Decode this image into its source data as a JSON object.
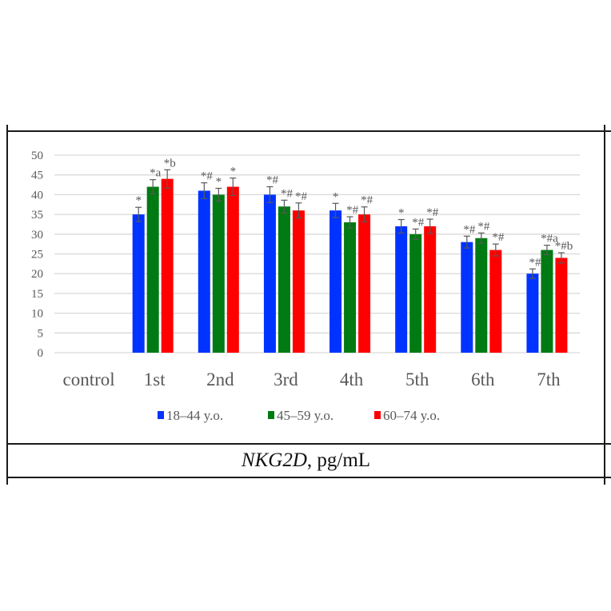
{
  "caption": {
    "gene": "NKG2D",
    "unit": ", pg/mL"
  },
  "colors": {
    "series_1": "#0033ff",
    "series_2": "#007a12",
    "series_3": "#ff0000",
    "grid": "#d9d9d9",
    "error_bar": "#595959",
    "text": "#595959"
  },
  "chart_data": {
    "type": "bar",
    "title": "",
    "xlabel": "",
    "ylabel": "NKG2D, pg/mL",
    "ylim": [
      0,
      50
    ],
    "yticks": [
      0,
      5,
      10,
      15,
      20,
      25,
      30,
      35,
      40,
      45,
      50
    ],
    "grid": true,
    "legend_position": "bottom",
    "categories": [
      "control",
      "1st",
      "2nd",
      "3rd",
      "4th",
      "5th",
      "6th",
      "7th"
    ],
    "series": [
      {
        "name": "18–44 y.o.",
        "color": "#0033ff",
        "values": [
          null,
          35,
          41,
          40,
          36,
          32,
          28,
          20
        ],
        "errors": [
          null,
          1.8,
          2.0,
          2.0,
          1.8,
          1.7,
          1.5,
          1.2
        ],
        "annotations": [
          "",
          "*",
          "*#",
          "*#",
          "*",
          "*",
          "*#",
          "*#"
        ]
      },
      {
        "name": "45–59 y.o.",
        "color": "#007a12",
        "values": [
          null,
          42,
          40,
          37,
          33,
          30,
          29,
          26
        ],
        "errors": [
          null,
          1.8,
          1.6,
          1.6,
          1.4,
          1.3,
          1.3,
          1.2
        ],
        "annotations": [
          "",
          "*a",
          "*",
          "*#",
          "*#",
          "*#",
          "*#",
          "*#a"
        ]
      },
      {
        "name": "60–74 y.o.",
        "color": "#ff0000",
        "values": [
          null,
          44,
          42,
          36,
          35,
          32,
          26,
          24
        ],
        "errors": [
          null,
          2.3,
          2.2,
          1.9,
          1.9,
          1.8,
          1.5,
          1.3
        ],
        "annotations": [
          "",
          "*b",
          "*",
          "*#",
          "*#",
          "*#",
          "*#",
          "*#b"
        ]
      }
    ]
  }
}
